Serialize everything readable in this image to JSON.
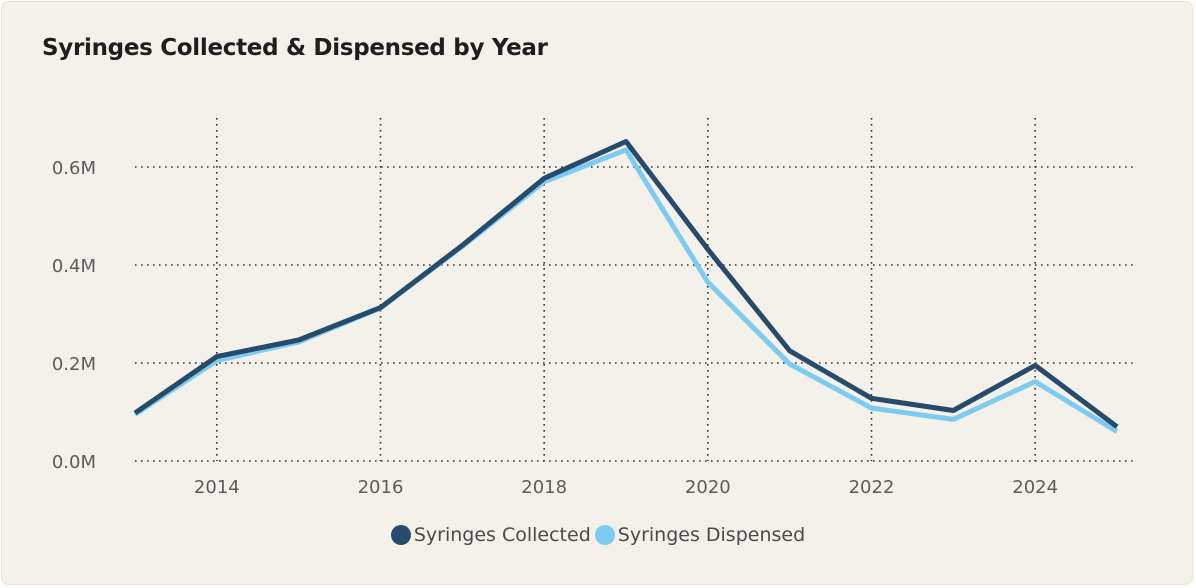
{
  "chart_data": {
    "type": "line",
    "title": "Syringes Collected & Dispensed by Year",
    "xlabel": "",
    "ylabel": "",
    "x": [
      2013,
      2014,
      2015,
      2016,
      2017,
      2018,
      2019,
      2020,
      2021,
      2022,
      2023,
      2024,
      2025
    ],
    "xlim": [
      2013,
      2025
    ],
    "x_ticks": [
      2014,
      2016,
      2018,
      2020,
      2022,
      2024
    ],
    "x_tick_labels": [
      "2014",
      "2016",
      "2018",
      "2020",
      "2022",
      "2024"
    ],
    "ylim": [
      0,
      700000
    ],
    "y_ticks": [
      0,
      200000,
      400000,
      600000
    ],
    "y_tick_labels": [
      "0.0M",
      "0.2M",
      "0.4M",
      "0.6M"
    ],
    "grid": true,
    "legend_position": "bottom-center",
    "series": [
      {
        "name": "Syringes Collected",
        "color": "#264b6b",
        "values": [
          98000,
          213000,
          247000,
          313000,
          440000,
          577000,
          652000,
          432000,
          225000,
          128000,
          103000,
          195000,
          70000
        ]
      },
      {
        "name": "Syringes Dispensed",
        "color": "#7dcbf0",
        "values": [
          95000,
          205000,
          243000,
          312000,
          438000,
          570000,
          635000,
          365000,
          198000,
          108000,
          85000,
          162000,
          60000
        ]
      }
    ]
  },
  "legend": {
    "items": [
      {
        "label": "Syringes Collected",
        "color": "#264b6b"
      },
      {
        "label": "Syringes Dispensed",
        "color": "#7dcbf0"
      }
    ]
  }
}
